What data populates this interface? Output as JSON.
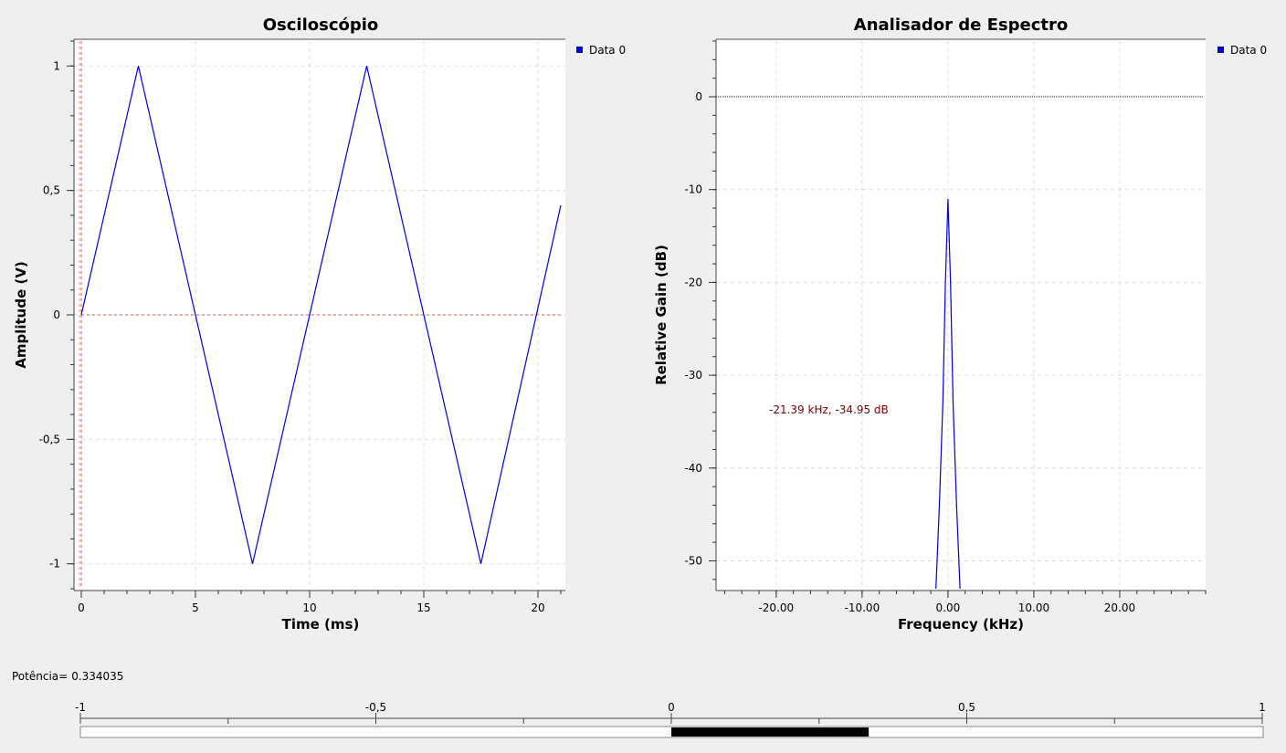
{
  "charts": [
    {
      "type": "line",
      "title": "Osciloscópio",
      "xlabel": "Time (ms)",
      "ylabel": "Amplitude (V)",
      "xlim": [
        0,
        21
      ],
      "ylim": [
        -1.1,
        1.1
      ],
      "xticks": [
        0,
        5,
        10,
        15,
        20
      ],
      "xtick_labels": [
        "0",
        "5",
        "10",
        "15",
        "20"
      ],
      "yticks": [
        1,
        0.5,
        0,
        -0.5,
        -1
      ],
      "ytick_labels": [
        "1",
        "0,5",
        "0",
        "-0,5",
        "-1"
      ],
      "legend": "Data 0",
      "legend_position": "top-right",
      "grid": true,
      "series": [
        {
          "name": "Data 0",
          "color": "#0000dd",
          "x": [
            0,
            2.5,
            7.5,
            12.5,
            17.5,
            21
          ],
          "y": [
            0,
            1,
            -1,
            1,
            -1,
            0.44
          ]
        }
      ],
      "trigger_lines": {
        "x": 0,
        "y": 0,
        "color": "#e05050"
      }
    },
    {
      "type": "line",
      "title": "Analisador de Espectro",
      "xlabel": "Frequency (kHz)",
      "ylabel": "Relative Gain (dB)",
      "xlim": [
        -27,
        30
      ],
      "ylim": [
        -53,
        6
      ],
      "xticks": [
        -20,
        -10,
        0,
        10,
        20
      ],
      "xtick_labels": [
        "-20.00",
        "-10.00",
        "0.00",
        "10.00",
        "20.00"
      ],
      "yticks": [
        0,
        -10,
        -20,
        -30,
        -40,
        -50
      ],
      "ytick_labels": [
        "0",
        "-10",
        "-20",
        "-30",
        "-40",
        "-50"
      ],
      "legend": "Data 0",
      "legend_position": "top-right",
      "grid": true,
      "series": [
        {
          "name": "Data 0",
          "color": "#0000dd",
          "x": [
            -1.4,
            -1.0,
            -0.6,
            -0.3,
            0,
            0.3,
            0.6,
            1.0,
            1.4
          ],
          "y": [
            -53,
            -44,
            -33,
            -20,
            -11,
            -20,
            -33,
            -44,
            -53
          ]
        }
      ],
      "reference_line": {
        "y": 0,
        "color": "#555555"
      },
      "marker_text": "-21.39 kHz, -34.95 dB"
    }
  ],
  "power": {
    "label": "Potência=",
    "value": "0.334035",
    "scale_labels": [
      "-1",
      "-0,5",
      "0",
      "0,5",
      "1"
    ],
    "scale_min": -1,
    "scale_max": 1,
    "level": 0.334035
  }
}
